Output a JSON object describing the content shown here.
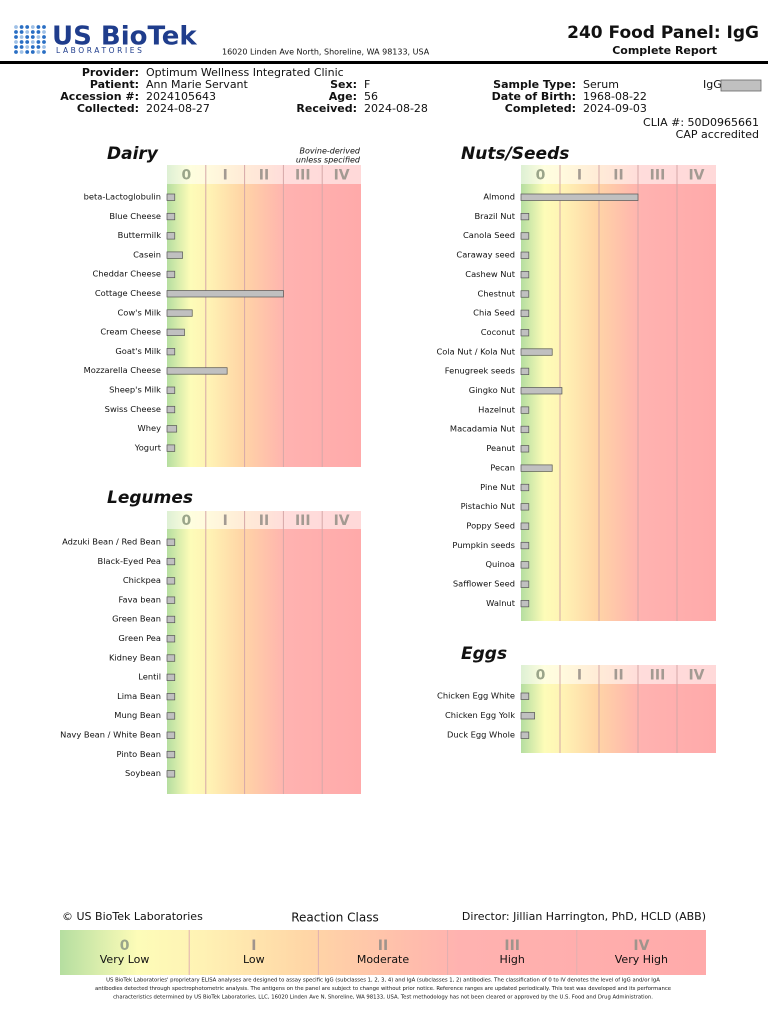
{
  "header": {
    "logo_name": "US BioTek",
    "logo_sub": "LABORATORIES",
    "address": "16020 Linden Ave North, Shoreline, WA 98133, USA",
    "title": "240 Food Panel: IgG",
    "subtitle": "Complete Report"
  },
  "patient": {
    "rows": [
      [
        {
          "label": "Provider:",
          "value": "Optimum Wellness Integrated Clinic"
        }
      ],
      [
        {
          "label": "Patient:",
          "value": "Ann Marie Servant"
        },
        {
          "label": "Sex:",
          "value": "F"
        },
        {
          "label": "Sample Type:",
          "value": "Serum"
        }
      ],
      [
        {
          "label": "Accession #:",
          "value": "2024105643"
        },
        {
          "label": "Age:",
          "value": "56"
        },
        {
          "label": "Date of Birth:",
          "value": "1968-08-22"
        }
      ],
      [
        {
          "label": "Collected:",
          "value": "2024-08-27"
        },
        {
          "label": "Received:",
          "value": "2024-08-28"
        },
        {
          "label": "Completed:",
          "value": "2024-09-03"
        }
      ]
    ],
    "igg_legend": "IgG",
    "clia": "CLIA #: 50D0965661",
    "cap": "CAP accredited"
  },
  "chart_data": [
    {
      "type": "bar",
      "orientation": "horizontal",
      "title": "Dairy",
      "annotation": [
        "Bovine-derived",
        "unless specified"
      ],
      "categories": [
        "beta-Lactoglobulin",
        "Blue Cheese",
        "Buttermilk",
        "Casein",
        "Cheddar Cheese",
        "Cottage Cheese",
        "Cow's Milk",
        "Cream Cheese",
        "Goat's Milk",
        "Mozzarella Cheese",
        "Sheep's Milk",
        "Swiss Cheese",
        "Whey",
        "Yogurt"
      ],
      "values": [
        0.2,
        0.2,
        0.2,
        0.4,
        0.2,
        3.0,
        0.65,
        0.45,
        0.2,
        1.55,
        0.2,
        0.2,
        0.25,
        0.2
      ],
      "color": "#c0c0c0",
      "xlim": [
        0,
        5
      ],
      "xticks": [
        {
          "value": 0,
          "label": "0"
        },
        {
          "value": 1,
          "label": "I"
        },
        {
          "value": 2,
          "label": "II"
        },
        {
          "value": 3,
          "label": "III"
        },
        {
          "value": 4,
          "label": "IV"
        }
      ]
    },
    {
      "type": "bar",
      "orientation": "horizontal",
      "title": "Legumes",
      "categories": [
        "Adzuki Bean / Red Bean",
        "Black-Eyed Pea",
        "Chickpea",
        "Fava bean",
        "Green Bean",
        "Green Pea",
        "Kidney Bean",
        "Lentil",
        "Lima Bean",
        "Mung Bean",
        "Navy Bean / White Bean",
        "Pinto Bean",
        "Soybean"
      ],
      "values": [
        0.2,
        0.2,
        0.2,
        0.2,
        0.2,
        0.2,
        0.2,
        0.2,
        0.2,
        0.2,
        0.2,
        0.2,
        0.2
      ],
      "color": "#c0c0c0",
      "xlim": [
        0,
        5
      ],
      "xticks": [
        {
          "value": 0,
          "label": "0"
        },
        {
          "value": 1,
          "label": "I"
        },
        {
          "value": 2,
          "label": "II"
        },
        {
          "value": 3,
          "label": "III"
        },
        {
          "value": 4,
          "label": "IV"
        }
      ]
    },
    {
      "type": "bar",
      "orientation": "horizontal",
      "title": "Nuts/Seeds",
      "categories": [
        "Almond",
        "Brazil Nut",
        "Canola Seed",
        "Caraway seed",
        "Cashew Nut",
        "Chestnut",
        "Chia Seed",
        "Coconut",
        "Cola Nut / Kola Nut",
        "Fenugreek seeds",
        "Gingko Nut",
        "Hazelnut",
        "Macadamia Nut",
        "Peanut",
        "Pecan",
        "Pine Nut",
        "Pistachio Nut",
        "Poppy Seed",
        "Pumpkin seeds",
        "Quinoa",
        "Safflower Seed",
        "Walnut"
      ],
      "values": [
        3.0,
        0.2,
        0.2,
        0.2,
        0.2,
        0.2,
        0.2,
        0.2,
        0.8,
        0.2,
        1.05,
        0.2,
        0.2,
        0.2,
        0.8,
        0.2,
        0.2,
        0.2,
        0.2,
        0.2,
        0.2,
        0.2
      ],
      "color": "#c0c0c0",
      "xlim": [
        0,
        5
      ],
      "xticks": [
        {
          "value": 0,
          "label": "0"
        },
        {
          "value": 1,
          "label": "I"
        },
        {
          "value": 2,
          "label": "II"
        },
        {
          "value": 3,
          "label": "III"
        },
        {
          "value": 4,
          "label": "IV"
        }
      ]
    },
    {
      "type": "bar",
      "orientation": "horizontal",
      "title": "Eggs",
      "categories": [
        "Chicken Egg White",
        "Chicken Egg Yolk",
        "Duck Egg Whole"
      ],
      "values": [
        0.2,
        0.35,
        0.2
      ],
      "color": "#c0c0c0",
      "xlim": [
        0,
        5
      ],
      "xticks": [
        {
          "value": 0,
          "label": "0"
        },
        {
          "value": 1,
          "label": "I"
        },
        {
          "value": 2,
          "label": "II"
        },
        {
          "value": 3,
          "label": "III"
        },
        {
          "value": 4,
          "label": "IV"
        }
      ]
    }
  ],
  "footer": {
    "copyright": "© US BioTek Laboratories",
    "legend_title": "Reaction Class",
    "director": "Director: Jillian Harrington, PhD, HCLD (ABB)",
    "classes": [
      {
        "numeral": "0",
        "label": "Very Low"
      },
      {
        "numeral": "I",
        "label": "Low"
      },
      {
        "numeral": "II",
        "label": "Moderate"
      },
      {
        "numeral": "III",
        "label": "High"
      },
      {
        "numeral": "IV",
        "label": "Very High"
      }
    ],
    "disclaimer": [
      "US BioTek Laboratories' proprietary ELISA analyses are designed to assay specific IgG (subclasses 1, 2, 3, 4) and IgA (subclasses 1, 2) antibodies. The classification of 0 to IV denotes the level of IgG and/or IgA",
      "antibodies detected through spectrophotometric analysis. The antigens on the panel are subject to change without prior notice. Reference ranges are updated periodically. This test was developed and its performance",
      "characteristics determined by US BioTek Laboratories, LLC, 16020 Linden Ave N, Shoreline, WA 98133, USA. Test methodology has not been cleared or approved by the U.S. Food and Drug Administration."
    ]
  }
}
